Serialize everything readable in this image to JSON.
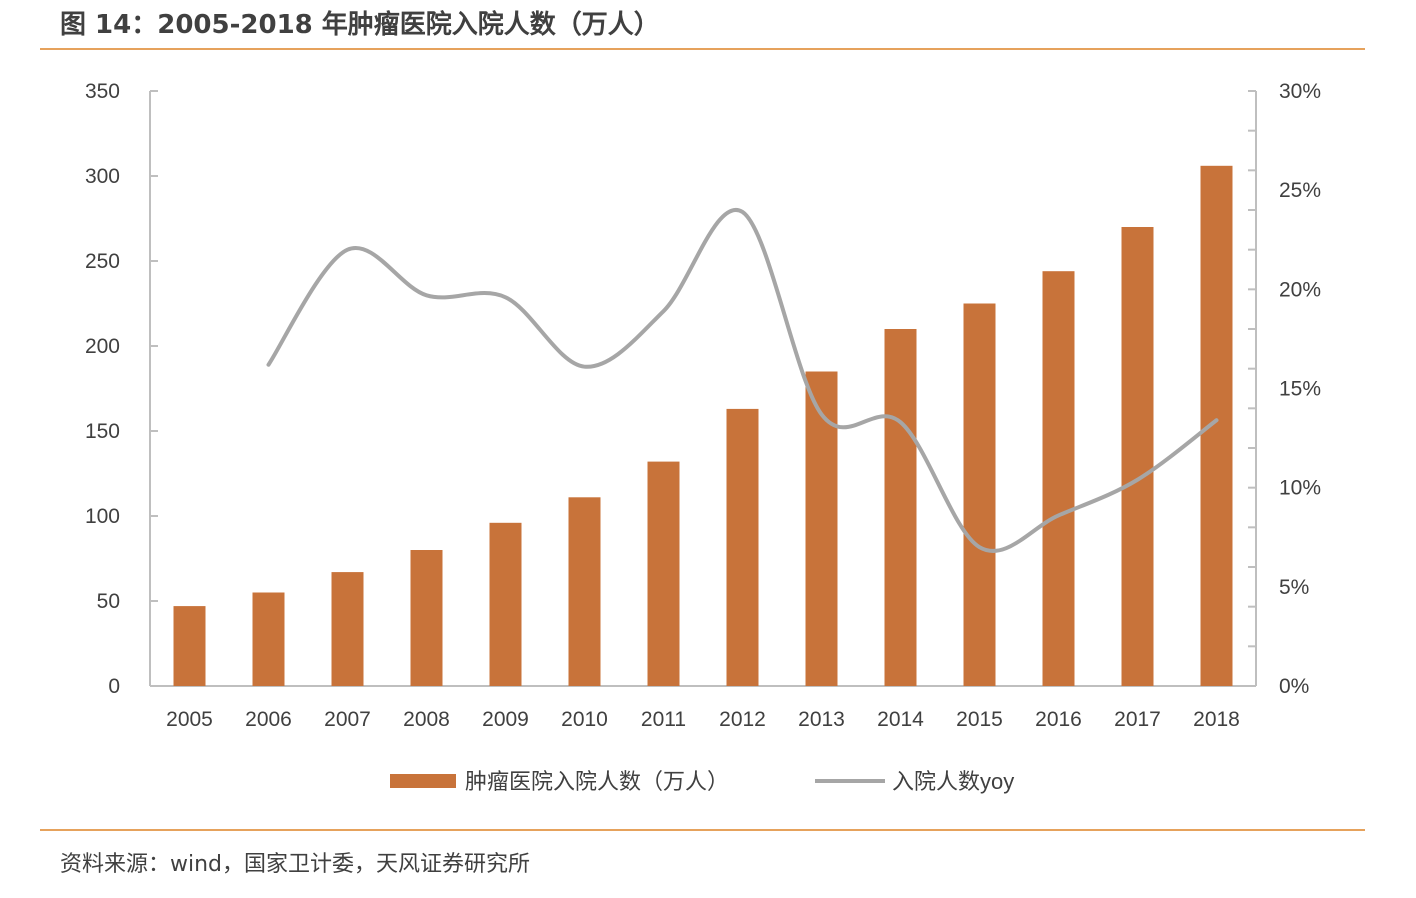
{
  "figure": {
    "title": "图 14：2005-2018 年肿瘤医院入院人数（万人）",
    "source": "资料来源：wind，国家卫计委，天风证券研究所"
  },
  "colors": {
    "bar": "#c8733a",
    "line": "#a6a6a6",
    "rule": "#e6a25c",
    "axis": "#bfbfbf",
    "text": "#404040"
  },
  "chart_data": {
    "type": "bar",
    "categories": [
      "2005",
      "2006",
      "2007",
      "2008",
      "2009",
      "2010",
      "2011",
      "2012",
      "2013",
      "2014",
      "2015",
      "2016",
      "2017",
      "2018"
    ],
    "series": [
      {
        "name": "肿瘤医院入院人数（万人）",
        "type": "bar",
        "axis": "left",
        "values": [
          47,
          55,
          67,
          80,
          96,
          111,
          132,
          163,
          185,
          210,
          225,
          244,
          270,
          306
        ]
      },
      {
        "name": "入院人数yoy",
        "type": "line",
        "axis": "right",
        "values": [
          null,
          16.2,
          22.0,
          19.7,
          19.6,
          16.1,
          18.9,
          23.9,
          13.7,
          13.3,
          7.0,
          8.6,
          10.4,
          13.4
        ]
      }
    ],
    "y_left": {
      "ylim": [
        0,
        350
      ],
      "ticks": [
        0,
        50,
        100,
        150,
        200,
        250,
        300,
        350
      ],
      "tick_labels": [
        "0",
        "50",
        "100",
        "150",
        "200",
        "250",
        "300",
        "350"
      ]
    },
    "y_right": {
      "ylim": [
        0,
        30
      ],
      "ticks": [
        0,
        5,
        10,
        15,
        20,
        25,
        30
      ],
      "tick_labels": [
        "0%",
        "5%",
        "10%",
        "15%",
        "20%",
        "25%",
        "30%"
      ]
    },
    "legend": {
      "placement": "bottom-center",
      "items": [
        {
          "label": "肿瘤医院入院人数（万人）",
          "kind": "bar"
        },
        {
          "label": "入院人数yoy",
          "kind": "line"
        }
      ]
    },
    "grid": false
  }
}
